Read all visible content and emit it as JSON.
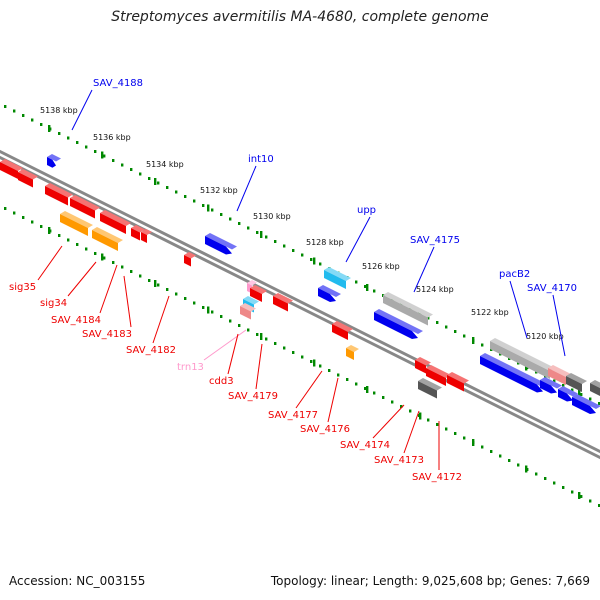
{
  "title": "Streptomyces avermitilis MA-4680, complete genome",
  "footer": {
    "accession": "Accession: NC_003155",
    "topology": "Topology: linear; Length: 9,025,608 bp; Genes: 7,669"
  },
  "colors": {
    "forward_gene": "#0000ee",
    "reverse_gene": "#ee0000",
    "pseudo_gene": "#ee8888",
    "rrna": "#ff99cc",
    "trna": "#22bbee",
    "misc_feature": "#ff9900",
    "grey_feature": "#aaaaaa",
    "dark_feature": "#555555",
    "scale_ticks": "#008800",
    "backbone": "#888888"
  },
  "scale_labels": [
    {
      "id": "t5138",
      "text": "5138 kbp"
    },
    {
      "id": "t5136",
      "text": "5136 kbp"
    },
    {
      "id": "t5134",
      "text": "5134 kbp"
    },
    {
      "id": "t5132",
      "text": "5132 kbp"
    },
    {
      "id": "t5130",
      "text": "5130 kbp"
    },
    {
      "id": "t5128",
      "text": "5128 kbp"
    },
    {
      "id": "t5126",
      "text": "5126 kbp"
    },
    {
      "id": "t5124",
      "text": "5124 kbp"
    },
    {
      "id": "t5122",
      "text": "5122 kbp"
    },
    {
      "id": "t5120",
      "text": "5120 kbp"
    }
  ],
  "gene_labels_forward": [
    {
      "id": "SAV_4188",
      "text": "SAV_4188"
    },
    {
      "id": "int10",
      "text": "int10"
    },
    {
      "id": "upp",
      "text": "upp"
    },
    {
      "id": "SAV_4175",
      "text": "SAV_4175"
    },
    {
      "id": "pacB2",
      "text": "pacB2"
    },
    {
      "id": "SAV_4170",
      "text": "SAV_4170"
    }
  ],
  "gene_labels_reverse": [
    {
      "id": "sig35",
      "text": "sig35"
    },
    {
      "id": "sig34",
      "text": "sig34"
    },
    {
      "id": "SAV_4184",
      "text": "SAV_4184"
    },
    {
      "id": "SAV_4183",
      "text": "SAV_4183"
    },
    {
      "id": "SAV_4182",
      "text": "SAV_4182"
    },
    {
      "id": "trn13",
      "text": "trn13"
    },
    {
      "id": "cdd3",
      "text": "cdd3"
    },
    {
      "id": "SAV_4179",
      "text": "SAV_4179"
    },
    {
      "id": "SAV_4177",
      "text": "SAV_4177"
    },
    {
      "id": "SAV_4176",
      "text": "SAV_4176"
    },
    {
      "id": "SAV_4174",
      "text": "SAV_4174"
    },
    {
      "id": "SAV_4173",
      "text": "SAV_4173"
    },
    {
      "id": "SAV_4172",
      "text": "SAV_4172"
    }
  ]
}
